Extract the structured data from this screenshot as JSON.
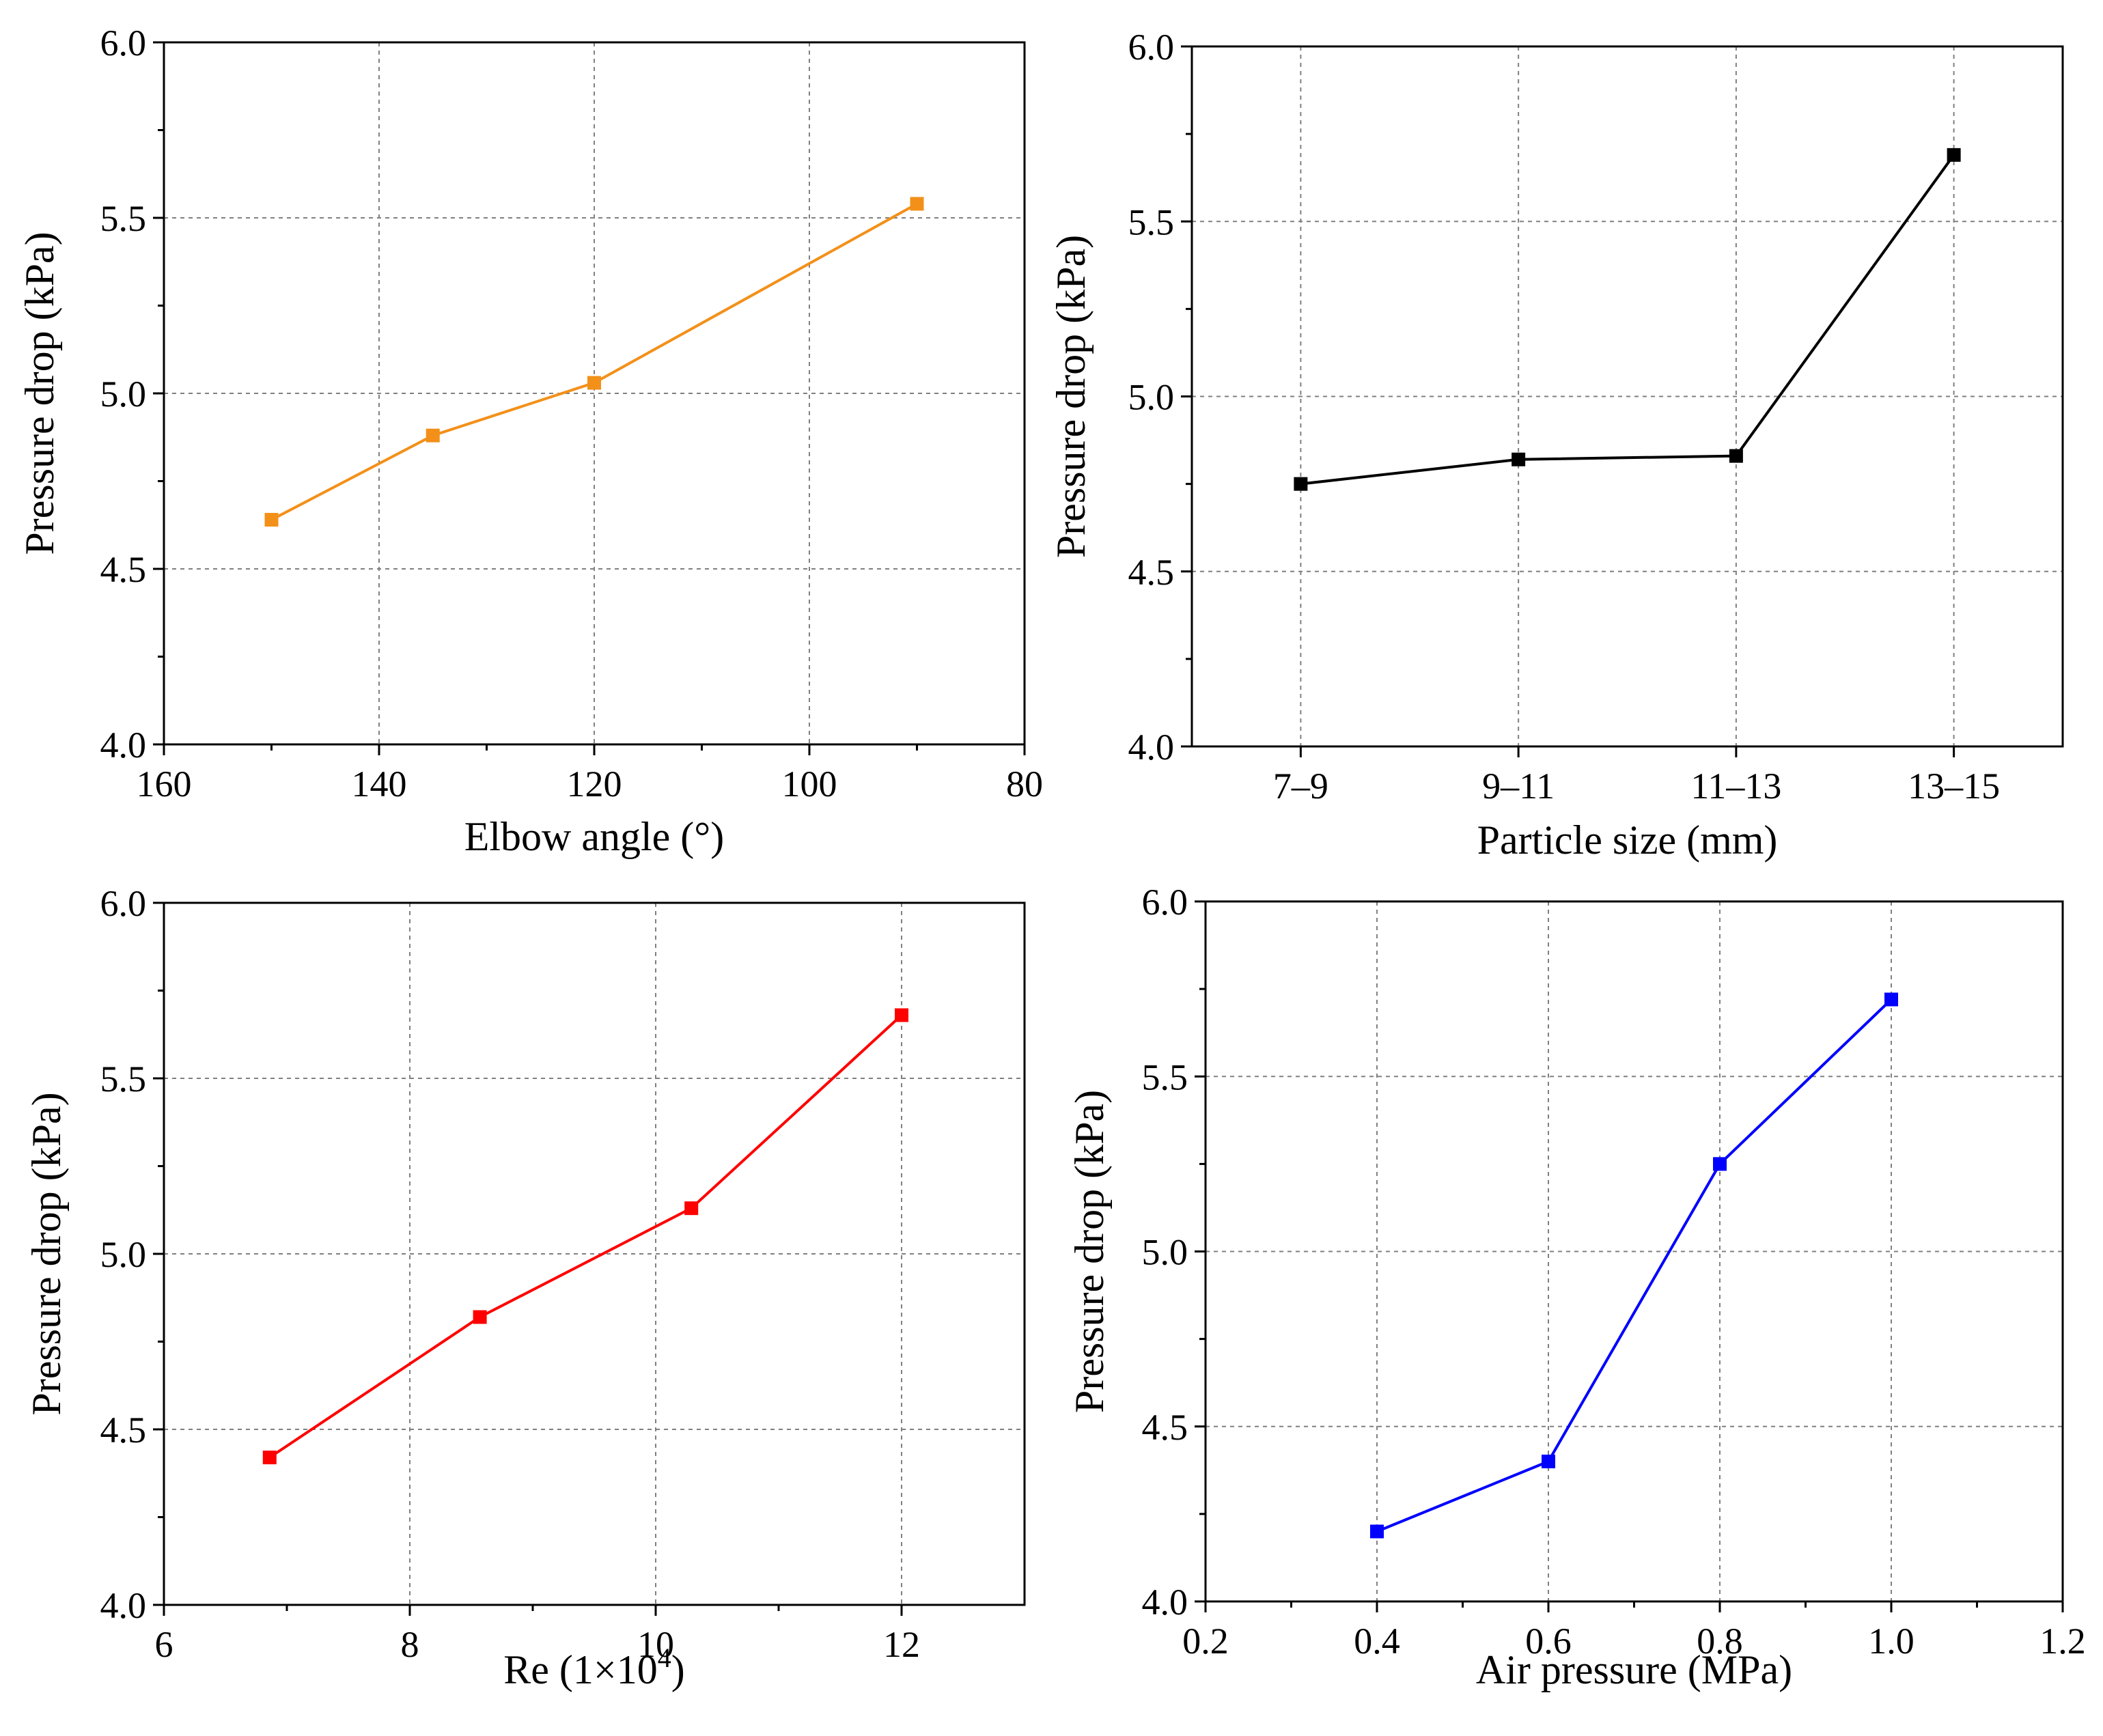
{
  "chart_data": [
    {
      "type": "line",
      "title": "",
      "xlabel": "Elbow angle (°)",
      "ylabel": "Pressure drop (kPa)",
      "x_scale": "numeric",
      "x_reversed": true,
      "xlim": [
        160,
        80
      ],
      "ylim": [
        4.0,
        6.0
      ],
      "x_ticks": [
        160,
        140,
        120,
        100,
        80
      ],
      "x_tick_labels": [
        "160",
        "140",
        "120",
        "100",
        "80"
      ],
      "y_ticks": [
        4.0,
        4.5,
        5.0,
        5.5,
        6.0
      ],
      "y_tick_labels": [
        "4.0",
        "4.5",
        "5.0",
        "5.5",
        "6.0"
      ],
      "grid": true,
      "series": [
        {
          "name": "Elbow angle",
          "color": "#F39019",
          "x": [
            150,
            135,
            120,
            90
          ],
          "y": [
            4.64,
            4.88,
            5.03,
            5.54
          ]
        }
      ]
    },
    {
      "type": "line",
      "title": "",
      "xlabel": "Particle size (mm)",
      "ylabel": "Pressure drop (kPa)",
      "x_scale": "categorical",
      "categories": [
        "7–9",
        "9–11",
        "11–13",
        "13–15"
      ],
      "ylim": [
        4.0,
        6.0
      ],
      "y_ticks": [
        4.0,
        4.5,
        5.0,
        5.5,
        6.0
      ],
      "y_tick_labels": [
        "4.0",
        "4.5",
        "5.0",
        "5.5",
        "6.0"
      ],
      "grid": true,
      "series": [
        {
          "name": "Particle size",
          "color": "#000000",
          "values": [
            4.75,
            4.82,
            4.83,
            5.69
          ]
        }
      ]
    },
    {
      "type": "line",
      "title": "",
      "xlabel": "Re (1×10",
      "xlabel_sup": "4",
      "xlabel_end": ")",
      "ylabel": "Pressure drop (kPa)",
      "x_scale": "numeric",
      "xlim": [
        6,
        13
      ],
      "ylim": [
        4.0,
        6.0
      ],
      "x_ticks": [
        6,
        8,
        10,
        12
      ],
      "x_tick_labels": [
        "6",
        "8",
        "10",
        "12"
      ],
      "y_ticks": [
        4.0,
        4.5,
        5.0,
        5.5,
        6.0
      ],
      "y_tick_labels": [
        "4.0",
        "4.5",
        "5.0",
        "5.5",
        "6.0"
      ],
      "grid": true,
      "series": [
        {
          "name": "Re",
          "color": "#FF0000",
          "x": [
            6.86,
            8.57,
            10.29,
            12.0
          ],
          "y": [
            4.42,
            4.82,
            5.13,
            5.68
          ]
        }
      ]
    },
    {
      "type": "line",
      "title": "",
      "xlabel": "Air pressure (MPa)",
      "ylabel": "Pressure drop (kPa)",
      "x_scale": "numeric",
      "xlim": [
        0.2,
        1.2
      ],
      "ylim": [
        4.0,
        6.0
      ],
      "x_ticks": [
        0.2,
        0.4,
        0.6,
        0.8,
        1.0,
        1.2
      ],
      "x_tick_labels": [
        "0.2",
        "0.4",
        "0.6",
        "0.8",
        "1.0",
        "1.2"
      ],
      "y_ticks": [
        4.0,
        4.5,
        5.0,
        5.5,
        6.0
      ],
      "y_tick_labels": [
        "4.0",
        "4.5",
        "5.0",
        "5.5",
        "6.0"
      ],
      "grid": true,
      "series": [
        {
          "name": "Air pressure",
          "color": "#0000FF",
          "x": [
            0.4,
            0.6,
            0.8,
            1.0
          ],
          "y": [
            4.2,
            4.4,
            5.25,
            5.72
          ]
        }
      ]
    }
  ]
}
